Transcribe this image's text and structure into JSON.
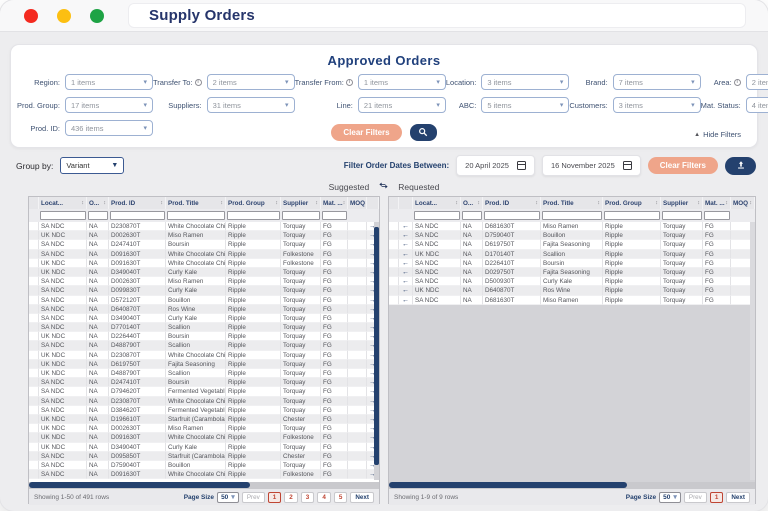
{
  "window": {
    "title": "Supply Orders"
  },
  "filters": {
    "title": "Approved Orders",
    "fields": [
      {
        "label": "Region:",
        "info": false,
        "value": "1 items"
      },
      {
        "label": "Transfer To:",
        "info": true,
        "value": "2 items"
      },
      {
        "label": "Transfer From:",
        "info": true,
        "value": "1 items"
      },
      {
        "label": "Location:",
        "info": false,
        "value": "3 items"
      },
      {
        "label": "Brand:",
        "info": false,
        "value": "7 items"
      },
      {
        "label": "Area:",
        "info": true,
        "value": "2 items"
      },
      {
        "label": "Prod. Group:",
        "info": false,
        "value": "17 items"
      },
      {
        "label": "Suppliers:",
        "info": false,
        "value": "31 items"
      },
      {
        "label": "Line:",
        "info": false,
        "value": "21 items"
      },
      {
        "label": "ABC:",
        "info": false,
        "value": "5 items"
      },
      {
        "label": "Customers:",
        "info": false,
        "value": "3 items"
      },
      {
        "label": "Mat. Status:",
        "info": false,
        "value": "4 items"
      },
      {
        "label": "Prod. ID:",
        "info": false,
        "value": "436 items"
      }
    ],
    "clear_button": "Clear Filters",
    "hide_filters": "Hide Filters"
  },
  "toolbar": {
    "group_by_label": "Group by:",
    "group_by_value": "Variant",
    "date_label": "Filter Order Dates Between:",
    "date_from": "20 April 2025",
    "date_to": "16 November 2025",
    "clear_button": "Clear Filters"
  },
  "legend": {
    "left": "Suggested",
    "right": "Requested"
  },
  "suggested_table": {
    "columns": [
      "Locat...",
      "O...",
      "Prod. ID",
      "Prod. Title",
      "Prod. Group",
      "Supplier",
      "Mat. ...",
      "MOQ"
    ],
    "rows": [
      [
        "SA NDC",
        "NA",
        "D230870T",
        "White Chocolate Chips",
        "Ripple",
        "Torquay",
        "FG",
        ""
      ],
      [
        "UK NDC",
        "NA",
        "D002630T",
        "Miso Ramen",
        "Ripple",
        "Torquay",
        "FG",
        ""
      ],
      [
        "SA NDC",
        "NA",
        "D247410T",
        "Boursin",
        "Ripple",
        "Torquay",
        "FG",
        ""
      ],
      [
        "SA NDC",
        "NA",
        "D091630T",
        "White Chocolate Chips",
        "Ripple",
        "Folkestone",
        "FG",
        ""
      ],
      [
        "UK NDC",
        "NA",
        "D091630T",
        "White Chocolate Chips",
        "Ripple",
        "Folkestone",
        "FG",
        ""
      ],
      [
        "UK NDC",
        "NA",
        "D349040T",
        "Curly Kale",
        "Ripple",
        "Torquay",
        "FG",
        ""
      ],
      [
        "SA NDC",
        "NA",
        "D002630T",
        "Miso Ramen",
        "Ripple",
        "Torquay",
        "FG",
        ""
      ],
      [
        "SA NDC",
        "NA",
        "D099830T",
        "Curly Kale",
        "Ripple",
        "Torquay",
        "FG",
        ""
      ],
      [
        "SA NDC",
        "NA",
        "D572120T",
        "Bouillon",
        "Ripple",
        "Torquay",
        "FG",
        ""
      ],
      [
        "SA NDC",
        "NA",
        "D640870T",
        "Ros Wine",
        "Ripple",
        "Torquay",
        "FG",
        ""
      ],
      [
        "SA NDC",
        "NA",
        "D349040T",
        "Curly Kale",
        "Ripple",
        "Torquay",
        "FG",
        ""
      ],
      [
        "SA NDC",
        "NA",
        "D770140T",
        "Scallion",
        "Ripple",
        "Torquay",
        "FG",
        ""
      ],
      [
        "UK NDC",
        "NA",
        "D226440T",
        "Boursin",
        "Ripple",
        "Torquay",
        "FG",
        ""
      ],
      [
        "SA NDC",
        "NA",
        "D488790T",
        "Scallion",
        "Ripple",
        "Torquay",
        "FG",
        ""
      ],
      [
        "UK NDC",
        "NA",
        "D230870T",
        "White Chocolate Chips",
        "Ripple",
        "Torquay",
        "FG",
        ""
      ],
      [
        "UK NDC",
        "NA",
        "D619750T",
        "Fajita Seasoning",
        "Ripple",
        "Torquay",
        "FG",
        ""
      ],
      [
        "UK NDC",
        "NA",
        "D488790T",
        "Scallion",
        "Ripple",
        "Torquay",
        "FG",
        ""
      ],
      [
        "SA NDC",
        "NA",
        "D247410T",
        "Boursin",
        "Ripple",
        "Torquay",
        "FG",
        ""
      ],
      [
        "SA NDC",
        "NA",
        "D794620T",
        "Fermented Vegetables",
        "Ripple",
        "Torquay",
        "FG",
        ""
      ],
      [
        "SA NDC",
        "NA",
        "D230870T",
        "White Chocolate Chips",
        "Ripple",
        "Torquay",
        "FG",
        ""
      ],
      [
        "SA NDC",
        "NA",
        "D384620T",
        "Fermented Vegetables",
        "Ripple",
        "Torquay",
        "FG",
        ""
      ],
      [
        "UK NDC",
        "NA",
        "D196610T",
        "Starfruit (Carambola)",
        "Ripple",
        "Chester",
        "FG",
        ""
      ],
      [
        "UK NDC",
        "NA",
        "D002630T",
        "Miso Ramen",
        "Ripple",
        "Torquay",
        "FG",
        ""
      ],
      [
        "UK NDC",
        "NA",
        "D091630T",
        "White Chocolate Chips",
        "Ripple",
        "Folkestone",
        "FG",
        ""
      ],
      [
        "UK NDC",
        "NA",
        "D349040T",
        "Curly Kale",
        "Ripple",
        "Torquay",
        "FG",
        ""
      ],
      [
        "SA NDC",
        "NA",
        "D095850T",
        "Starfruit (Carambola)",
        "Ripple",
        "Chester",
        "FG",
        ""
      ],
      [
        "SA NDC",
        "NA",
        "D759040T",
        "Bouillon",
        "Ripple",
        "Torquay",
        "FG",
        ""
      ],
      [
        "SA NDC",
        "NA",
        "D091630T",
        "White Chocolate Chips",
        "Ripple",
        "Folkestone",
        "FG",
        ""
      ]
    ],
    "footer": {
      "showing": "Showing 1-50 of 491 rows",
      "page_size_label": "Page Size",
      "page_size_value": "50",
      "prev": "Prev",
      "pages": [
        "1",
        "2",
        "3",
        "4",
        "5"
      ],
      "active_page": "1",
      "next": "Next"
    }
  },
  "requested_table": {
    "columns": [
      "Locat...",
      "O...",
      "Prod. ID",
      "Prod. Title",
      "Prod. Group",
      "Supplier",
      "Mat. ...",
      "MOQ"
    ],
    "rows": [
      [
        "SA NDC",
        "NA",
        "D681630T",
        "Miso Ramen",
        "Ripple",
        "Torquay",
        "FG",
        ""
      ],
      [
        "SA NDC",
        "NA",
        "D759040T",
        "Bouillon",
        "Ripple",
        "Torquay",
        "FG",
        ""
      ],
      [
        "SA NDC",
        "NA",
        "D619750T",
        "Fajita Seasoning",
        "Ripple",
        "Torquay",
        "FG",
        ""
      ],
      [
        "UK NDC",
        "NA",
        "D170140T",
        "Scallion",
        "Ripple",
        "Torquay",
        "FG",
        ""
      ],
      [
        "SA NDC",
        "NA",
        "D226410T",
        "Boursin",
        "Ripple",
        "Torquay",
        "FG",
        ""
      ],
      [
        "SA NDC",
        "NA",
        "D029750T",
        "Fajita Seasoning",
        "Ripple",
        "Torquay",
        "FG",
        ""
      ],
      [
        "SA NDC",
        "NA",
        "D500930T",
        "Curly Kale",
        "Ripple",
        "Torquay",
        "FG",
        ""
      ],
      [
        "UK NDC",
        "NA",
        "D640870T",
        "Ros Wine",
        "Ripple",
        "Torquay",
        "FG",
        ""
      ],
      [
        "SA NDC",
        "NA",
        "D681630T",
        "Miso Ramen",
        "Ripple",
        "Torquay",
        "FG",
        ""
      ]
    ],
    "footer": {
      "showing": "Showing 1-9 of 9 rows",
      "page_size_label": "Page Size",
      "page_size_value": "50",
      "prev": "Prev",
      "pages": [
        "1"
      ],
      "active_page": "1",
      "next": "Next"
    }
  },
  "colors": {
    "navy": "#24416e",
    "salmon": "#efa58a",
    "traffic_red": "#f42a20",
    "traffic_yellow": "#fcbf12",
    "traffic_green": "#1ea345",
    "page_active_red": "#bf4533"
  }
}
